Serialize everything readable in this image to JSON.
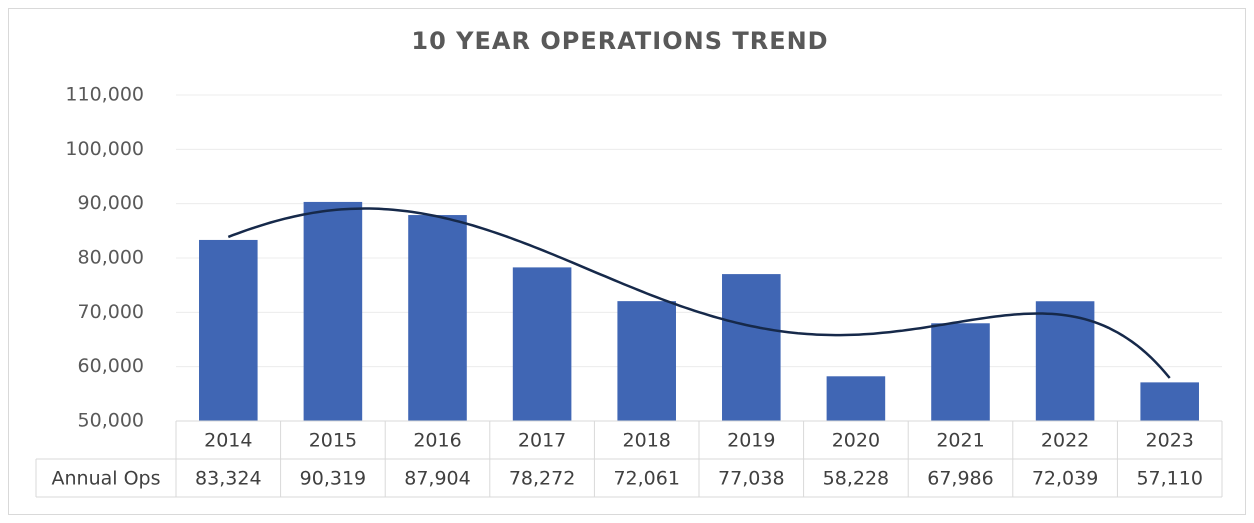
{
  "chart_data": {
    "type": "bar",
    "title": "10 YEAR OPERATIONS TREND",
    "categories": [
      "2014",
      "2015",
      "2016",
      "2017",
      "2018",
      "2019",
      "2020",
      "2021",
      "2022",
      "2023"
    ],
    "series": [
      {
        "name": "Annual Ops",
        "color": "#4066b4",
        "values": [
          83324,
          90319,
          87904,
          78272,
          72061,
          77038,
          58228,
          67986,
          72039,
          57110
        ],
        "value_labels": [
          "83,324",
          "90,319",
          "87,904",
          "78,272",
          "72,061",
          "77,038",
          "58,228",
          "67,986",
          "72,039",
          "57,110"
        ]
      }
    ],
    "ylim": [
      50000,
      110000
    ],
    "yticks": [
      {
        "value": 50000,
        "label": "50,000"
      },
      {
        "value": 60000,
        "label": "60,000"
      },
      {
        "value": 70000,
        "label": "70,000"
      },
      {
        "value": 80000,
        "label": "80,000"
      },
      {
        "value": 90000,
        "label": "90,000"
      },
      {
        "value": 100000,
        "label": "100,000"
      },
      {
        "value": 110000,
        "label": "110,000"
      }
    ],
    "grid": true,
    "trendline": {
      "type": "polynomial",
      "order": 5,
      "color": "#16294a"
    },
    "data_table": true
  }
}
